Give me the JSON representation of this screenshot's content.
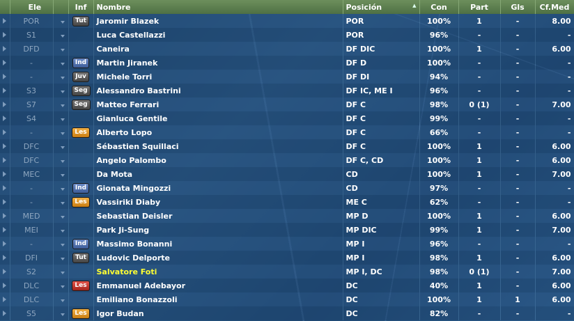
{
  "headers": {
    "ele": "Ele",
    "inf": "Inf",
    "nombre": "Nombre",
    "posicion": "Posición",
    "con": "Con",
    "part": "Part",
    "gls": "Gls",
    "cfmed": "Cf.Med"
  },
  "rows": [
    {
      "ele": "POR",
      "inf": "Tut",
      "inf_color": "gray",
      "nombre": "Jaromir Blazek",
      "posicion": "POR",
      "con": "100%",
      "part": "1",
      "gls": "-",
      "cfmed": "8.00"
    },
    {
      "ele": "S1",
      "inf": "",
      "inf_color": "",
      "nombre": "Luca Castellazzi",
      "posicion": "POR",
      "con": "96%",
      "part": "-",
      "gls": "-",
      "cfmed": "-"
    },
    {
      "ele": "DFD",
      "inf": "",
      "inf_color": "",
      "nombre": "Caneira",
      "posicion": "DF DIC",
      "con": "100%",
      "part": "1",
      "gls": "-",
      "cfmed": "6.00"
    },
    {
      "ele": "-",
      "inf": "Ind",
      "inf_color": "blue",
      "nombre": "Martin Jiranek",
      "posicion": "DF D",
      "con": "100%",
      "part": "-",
      "gls": "-",
      "cfmed": "-"
    },
    {
      "ele": "-",
      "inf": "Juv",
      "inf_color": "gray",
      "nombre": "Michele Torri",
      "posicion": "DF DI",
      "con": "94%",
      "part": "-",
      "gls": "-",
      "cfmed": "-"
    },
    {
      "ele": "S3",
      "inf": "Seg",
      "inf_color": "gray",
      "nombre": "Alessandro Bastrini",
      "posicion": "DF IC, ME I",
      "con": "96%",
      "part": "-",
      "gls": "-",
      "cfmed": "-"
    },
    {
      "ele": "S7",
      "inf": "Seg",
      "inf_color": "gray",
      "nombre": "Matteo Ferrari",
      "posicion": "DF C",
      "con": "98%",
      "part": "0 (1)",
      "gls": "-",
      "cfmed": "7.00"
    },
    {
      "ele": "S4",
      "inf": "",
      "inf_color": "",
      "nombre": "Gianluca Gentile",
      "posicion": "DF C",
      "con": "99%",
      "part": "-",
      "gls": "-",
      "cfmed": "-"
    },
    {
      "ele": "-",
      "inf": "Les",
      "inf_color": "orange",
      "nombre": "Alberto Lopo",
      "posicion": "DF C",
      "con": "66%",
      "part": "-",
      "gls": "-",
      "cfmed": "-"
    },
    {
      "ele": "DFC",
      "inf": "",
      "inf_color": "",
      "nombre": "Sébastien Squillaci",
      "posicion": "DF C",
      "con": "100%",
      "part": "1",
      "gls": "-",
      "cfmed": "6.00"
    },
    {
      "ele": "DFC",
      "inf": "",
      "inf_color": "",
      "nombre": "Angelo Palombo",
      "posicion": "DF C, CD",
      "con": "100%",
      "part": "1",
      "gls": "-",
      "cfmed": "6.00"
    },
    {
      "ele": "MEC",
      "inf": "",
      "inf_color": "",
      "nombre": "Da Mota",
      "posicion": "CD",
      "con": "100%",
      "part": "1",
      "gls": "-",
      "cfmed": "7.00"
    },
    {
      "ele": "-",
      "inf": "Ind",
      "inf_color": "blue",
      "nombre": "Gionata Mingozzi",
      "posicion": "CD",
      "con": "97%",
      "part": "-",
      "gls": "-",
      "cfmed": "-"
    },
    {
      "ele": "-",
      "inf": "Les",
      "inf_color": "orange",
      "nombre": "Vassiriki Diaby",
      "posicion": "ME C",
      "con": "62%",
      "part": "-",
      "gls": "-",
      "cfmed": "-"
    },
    {
      "ele": "MED",
      "inf": "",
      "inf_color": "",
      "nombre": "Sebastian Deisler",
      "posicion": "MP D",
      "con": "100%",
      "part": "1",
      "gls": "-",
      "cfmed": "6.00"
    },
    {
      "ele": "MEI",
      "inf": "",
      "inf_color": "",
      "nombre": "Park Ji-Sung",
      "posicion": "MP DIC",
      "con": "99%",
      "part": "1",
      "gls": "-",
      "cfmed": "7.00"
    },
    {
      "ele": "-",
      "inf": "Ind",
      "inf_color": "blue",
      "nombre": "Massimo Bonanni",
      "posicion": "MP I",
      "con": "96%",
      "part": "-",
      "gls": "-",
      "cfmed": "-"
    },
    {
      "ele": "DFI",
      "inf": "Tut",
      "inf_color": "gray",
      "nombre": "Ludovic Delporte",
      "posicion": "MP I",
      "con": "98%",
      "part": "1",
      "gls": "-",
      "cfmed": "6.00"
    },
    {
      "ele": "S2",
      "inf": "",
      "inf_color": "",
      "nombre": "Salvatore Foti",
      "highlight": true,
      "posicion": "MP I, DC",
      "con": "98%",
      "part": "0 (1)",
      "gls": "-",
      "cfmed": "7.00"
    },
    {
      "ele": "DLC",
      "inf": "Les",
      "inf_color": "red",
      "nombre": "Emmanuel Adebayor",
      "posicion": "DC",
      "con": "40%",
      "part": "1",
      "gls": "-",
      "cfmed": "6.00"
    },
    {
      "ele": "DLC",
      "inf": "",
      "inf_color": "",
      "nombre": "Emiliano Bonazzoli",
      "posicion": "DC",
      "con": "100%",
      "part": "1",
      "gls": "1",
      "cfmed": "6.00"
    },
    {
      "ele": "S5",
      "inf": "Les",
      "inf_color": "orange",
      "nombre": "Igor Budan",
      "posicion": "DC",
      "con": "82%",
      "part": "-",
      "gls": "-",
      "cfmed": "-"
    }
  ]
}
